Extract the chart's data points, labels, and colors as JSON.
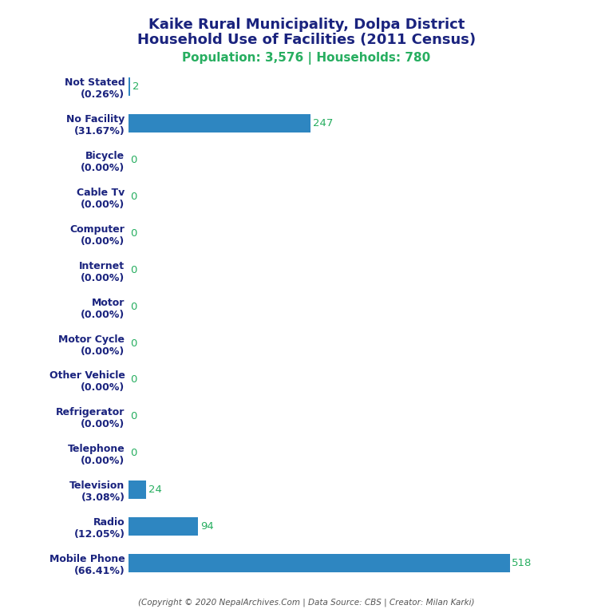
{
  "title_line1": "Kaike Rural Municipality, Dolpa District",
  "title_line2": "Household Use of Facilities (2011 Census)",
  "subtitle": "Population: 3,576 | Households: 780",
  "footer": "(Copyright © 2020 NepalArchives.Com | Data Source: CBS | Creator: Milan Karki)",
  "categories": [
    "Not Stated\n(0.26%)",
    "No Facility\n(31.67%)",
    "Bicycle\n(0.00%)",
    "Cable Tv\n(0.00%)",
    "Computer\n(0.00%)",
    "Internet\n(0.00%)",
    "Motor\n(0.00%)",
    "Motor Cycle\n(0.00%)",
    "Other Vehicle\n(0.00%)",
    "Refrigerator\n(0.00%)",
    "Telephone\n(0.00%)",
    "Television\n(3.08%)",
    "Radio\n(12.05%)",
    "Mobile Phone\n(66.41%)"
  ],
  "values": [
    2,
    247,
    0,
    0,
    0,
    0,
    0,
    0,
    0,
    0,
    0,
    24,
    94,
    518
  ],
  "bar_color": "#2e86c1",
  "value_color": "#27ae60",
  "title_color": "#1a237e",
  "subtitle_color": "#27ae60",
  "footer_color": "#555555",
  "background_color": "#ffffff",
  "xlim": [
    0,
    600
  ]
}
